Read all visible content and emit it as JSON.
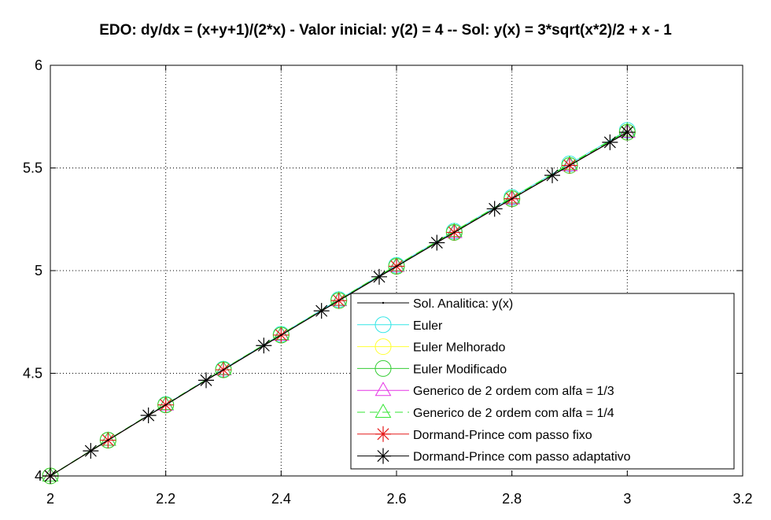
{
  "chart_data": {
    "type": "line",
    "title": "EDO: dy/dx = (x+y+1)/(2*x) - Valor inicial: y(2) = 4 -- Sol: y(x) = 3*sqrt(x*2)/2 + x - 1",
    "xlabel": "",
    "ylabel": "",
    "xlim": [
      2,
      3.2
    ],
    "ylim": [
      4,
      6
    ],
    "xticks": [
      "2",
      "2.2",
      "2.4",
      "2.6",
      "2.8",
      "3",
      "3.2"
    ],
    "yticks": [
      "4",
      "4.5",
      "5",
      "5.5",
      "6"
    ],
    "grid": true,
    "legend_position": "bottom-right",
    "series": [
      {
        "name": "Sol. Analitica: y(x)",
        "color": "#000000",
        "marker": "point",
        "line": "solid",
        "x": [
          2.0,
          2.1,
          2.2,
          2.3,
          2.4,
          2.5,
          2.6,
          2.7,
          2.8,
          2.9,
          3.0
        ],
        "y": [
          4.0,
          4.174,
          4.346,
          4.517,
          4.686,
          4.854,
          5.021,
          5.186,
          5.35,
          5.512,
          5.674
        ]
      },
      {
        "name": "Euler",
        "color": "#33e6e6",
        "marker": "circle",
        "line": "solid",
        "x": [
          2.0,
          2.1,
          2.2,
          2.3,
          2.4,
          2.5,
          2.6,
          2.7,
          2.8,
          2.9,
          3.0
        ],
        "y": [
          4.0,
          4.175,
          4.348,
          4.52,
          4.69,
          4.859,
          5.026,
          5.192,
          5.357,
          5.52,
          5.683
        ]
      },
      {
        "name": "Euler Melhorado",
        "color": "#ffff33",
        "marker": "circle",
        "line": "solid",
        "x": [
          2.0,
          2.1,
          2.2,
          2.3,
          2.4,
          2.5,
          2.6,
          2.7,
          2.8,
          2.9,
          3.0
        ],
        "y": [
          4.0,
          4.174,
          4.346,
          4.517,
          4.686,
          4.854,
          5.021,
          5.186,
          5.35,
          5.512,
          5.674
        ]
      },
      {
        "name": "Euler Modificado",
        "color": "#33cc33",
        "marker": "circle",
        "line": "solid",
        "x": [
          2.0,
          2.1,
          2.2,
          2.3,
          2.4,
          2.5,
          2.6,
          2.7,
          2.8,
          2.9,
          3.0
        ],
        "y": [
          4.0,
          4.174,
          4.346,
          4.517,
          4.686,
          4.854,
          5.021,
          5.186,
          5.35,
          5.512,
          5.674
        ]
      },
      {
        "name": "Generico de 2 ordem com alfa = 1/3",
        "color": "#e633e6",
        "marker": "triangle",
        "line": "solid",
        "x": [
          2.0,
          2.1,
          2.2,
          2.3,
          2.4,
          2.5,
          2.6,
          2.7,
          2.8,
          2.9,
          3.0
        ],
        "y": [
          4.0,
          4.174,
          4.346,
          4.517,
          4.686,
          4.854,
          5.021,
          5.186,
          5.35,
          5.512,
          5.674
        ]
      },
      {
        "name": "Generico de 2 ordem com alfa = 1/4",
        "color": "#33e633",
        "marker": "triangle",
        "line": "dashed",
        "x": [
          2.0,
          2.1,
          2.2,
          2.3,
          2.4,
          2.5,
          2.6,
          2.7,
          2.8,
          2.9,
          3.0
        ],
        "y": [
          4.0,
          4.175,
          4.348,
          4.519,
          4.689,
          4.857,
          5.025,
          5.191,
          5.355,
          5.518,
          5.68
        ]
      },
      {
        "name": "Dormand-Prince com passo fixo",
        "color": "#e61a1a",
        "marker": "star",
        "line": "solid",
        "x": [
          2.0,
          2.1,
          2.2,
          2.3,
          2.4,
          2.5,
          2.6,
          2.7,
          2.8,
          2.9,
          3.0
        ],
        "y": [
          4.0,
          4.174,
          4.346,
          4.517,
          4.686,
          4.854,
          5.021,
          5.186,
          5.35,
          5.512,
          5.674
        ]
      },
      {
        "name": "Dormand-Prince com passo adaptativo",
        "color": "#000000",
        "marker": "star",
        "line": "solid",
        "x": [
          2.0,
          2.07,
          2.17,
          2.27,
          2.37,
          2.47,
          2.57,
          2.67,
          2.77,
          2.87,
          2.97,
          3.0
        ],
        "y": [
          4.0,
          4.122,
          4.295,
          4.466,
          4.635,
          4.804,
          4.97,
          5.136,
          5.301,
          5.464,
          5.625,
          5.674
        ]
      }
    ]
  }
}
